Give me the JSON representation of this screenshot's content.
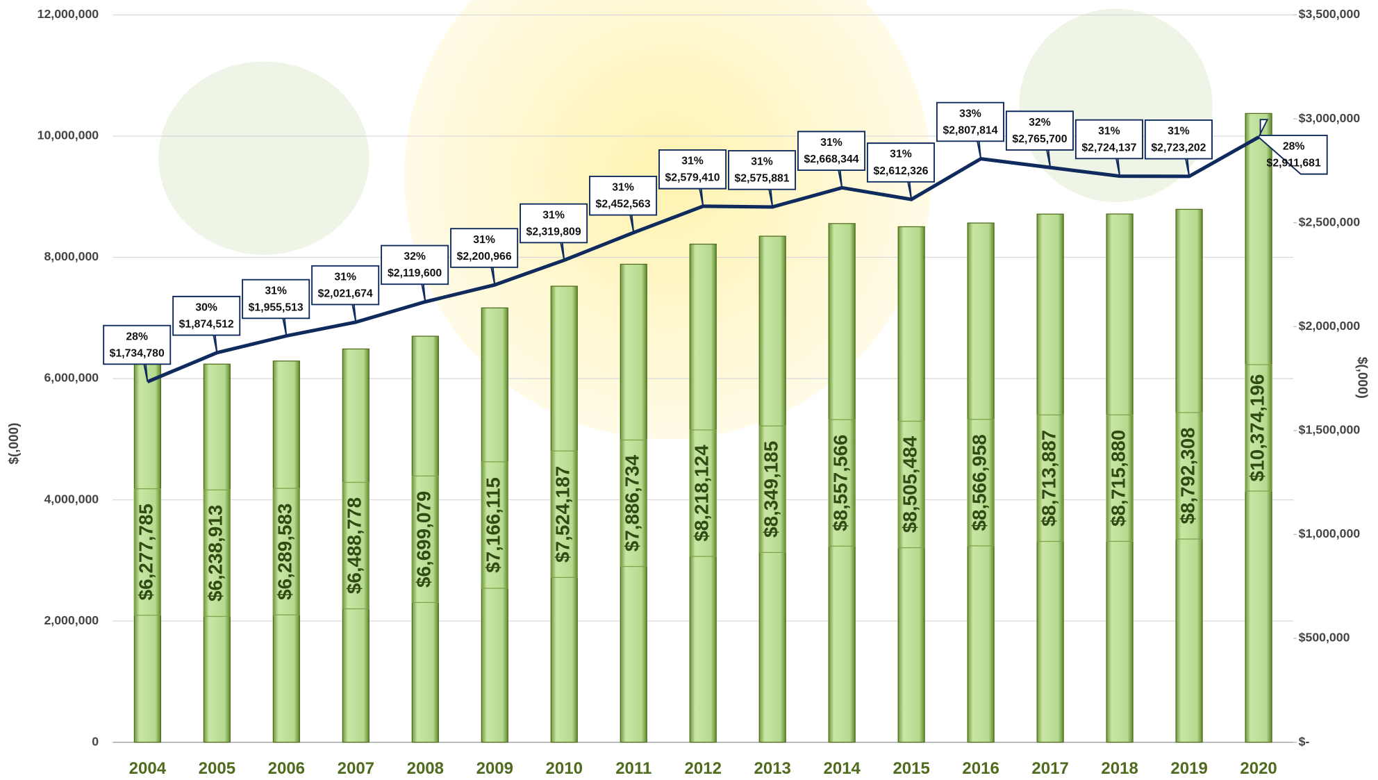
{
  "chart_data": {
    "type": "bar_line",
    "categories": [
      "2004",
      "2005",
      "2006",
      "2007",
      "2008",
      "2009",
      "2010",
      "2011",
      "2012",
      "2013",
      "2014",
      "2015",
      "2016",
      "2017",
      "2018",
      "2019",
      "2020"
    ],
    "series": [
      {
        "type": "bar",
        "color": "#a9d18e",
        "values": [
          6277785,
          6238913,
          6289583,
          6488778,
          6699079,
          7166115,
          7524187,
          7886734,
          8218124,
          8349185,
          8557566,
          8505484,
          8566958,
          8713887,
          8715880,
          8792308,
          10374196
        ],
        "value_labels": [
          "$6,277,785",
          "$6,238,913",
          "$6,289,583",
          "$6,488,778",
          "$6,699,079",
          "$7,166,115",
          "$7,524,187",
          "$7,886,734",
          "$8,218,124",
          "$8,349,185",
          "$8,557,566",
          "$8,505,484",
          "$8,566,958",
          "$8,713,887",
          "$8,715,880",
          "$8,792,308",
          "$10,374,196"
        ]
      },
      {
        "type": "line",
        "axis": "y2",
        "color": "#0f2a5c",
        "values": [
          1734780,
          1874512,
          1955513,
          2021674,
          2119600,
          2200966,
          2319809,
          2452563,
          2579410,
          2575881,
          2668344,
          2612326,
          2807814,
          2765700,
          2724137,
          2723202,
          2911681
        ],
        "value_labels": [
          "$1,734,780",
          "$1,874,512",
          "$1,955,513",
          "$2,021,674",
          "$2,119,600",
          "$2,200,966",
          "$2,319,809",
          "$2,452,563",
          "$2,579,410",
          "$2,575,881",
          "$2,668,344",
          "$2,612,326",
          "$2,807,814",
          "$2,765,700",
          "$2,724,137",
          "$2,723,202",
          "$2,911,681"
        ],
        "percentages": [
          28,
          30,
          31,
          31,
          32,
          31,
          31,
          31,
          31,
          31,
          31,
          31,
          33,
          32,
          31,
          31,
          28
        ],
        "percentage_labels": [
          "28%",
          "30%",
          "31%",
          "31%",
          "32%",
          "31%",
          "31%",
          "31%",
          "31%",
          "31%",
          "31%",
          "31%",
          "33%",
          "32%",
          "31%",
          "31%",
          "28%"
        ]
      }
    ],
    "ylabel": "$(,000)",
    "y2label": "$(,000)",
    "ylim": [
      0,
      12000000
    ],
    "yticks": [
      {
        "value": 0,
        "label": "0"
      },
      {
        "value": 2000000,
        "label": "2,000,000"
      },
      {
        "value": 4000000,
        "label": "4,000,000"
      },
      {
        "value": 6000000,
        "label": "6,000,000"
      },
      {
        "value": 8000000,
        "label": "8,000,000"
      },
      {
        "value": 10000000,
        "label": "10,000,000"
      },
      {
        "value": 12000000,
        "label": "12,000,000"
      }
    ],
    "y2lim": [
      0,
      3500000
    ],
    "y2ticks": [
      {
        "value": 0,
        "label": "$-"
      },
      {
        "value": 500000,
        "label": "$500,000"
      },
      {
        "value": 1000000,
        "label": "$1,000,000"
      },
      {
        "value": 1500000,
        "label": "$1,500,000"
      },
      {
        "value": 2000000,
        "label": "$2,000,000"
      },
      {
        "value": 2500000,
        "label": "$2,500,000"
      },
      {
        "value": 3000000,
        "label": "$3,000,000"
      },
      {
        "value": 3500000,
        "label": "$3,500,000"
      }
    ],
    "grid": true
  }
}
